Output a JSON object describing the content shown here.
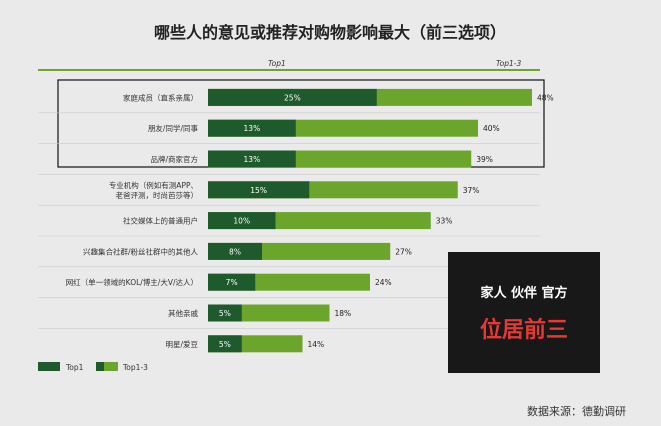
{
  "chart_data": {
    "type": "bar",
    "title": "哪些人的意见或推荐对购物影响最大（前三选项）",
    "column_headers": [
      "Top1",
      "Top1-3"
    ],
    "categories": [
      [
        "家庭成员（直系亲属）"
      ],
      [
        "朋友/同学/同事"
      ],
      [
        "品牌/商家官方"
      ],
      [
        "专业机构（例如有测APP、",
        "老爸评测，时尚芭莎等）"
      ],
      [
        "社交媒体上的普通用户"
      ],
      [
        "兴趣集合社群/粉丝社群中的其他人"
      ],
      [
        "网红（单一领域的KOL/博主/大V/达人）"
      ],
      [
        "其他亲戚"
      ],
      [
        "明星/爱豆"
      ]
    ],
    "series": [
      {
        "name": "Top1",
        "values": [
          25,
          13,
          13,
          15,
          10,
          8,
          7,
          5,
          5
        ],
        "color": "#1e5a2c"
      },
      {
        "name": "Top1-3",
        "values": [
          48,
          40,
          39,
          37,
          33,
          27,
          24,
          18,
          14
        ],
        "color": "#6ba52c"
      }
    ],
    "value_format": "%",
    "highlight_rows": [
      0,
      1,
      2
    ],
    "grid": false,
    "legend_position": "bottom-left"
  },
  "callout": {
    "line1": "家人  伙伴  官方",
    "line2": "位居前三"
  },
  "source": "数据来源：德勤调研"
}
